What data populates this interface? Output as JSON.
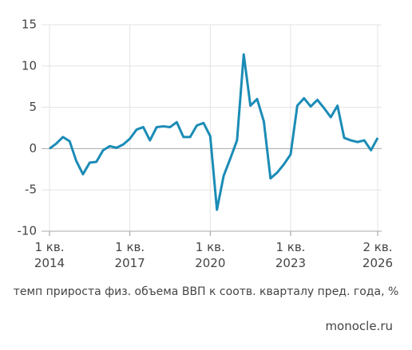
{
  "chart_data": {
    "type": "line",
    "categories": [
      "1 кв.\n2014",
      null,
      null,
      null,
      null,
      null,
      null,
      null,
      null,
      null,
      null,
      null,
      "1 кв.\n2017",
      null,
      null,
      null,
      null,
      null,
      null,
      null,
      null,
      null,
      null,
      null,
      "1 кв.\n2020",
      null,
      null,
      null,
      null,
      null,
      null,
      null,
      null,
      null,
      null,
      null,
      "1 кв.\n2023",
      null,
      null,
      null,
      null,
      null,
      null,
      null,
      null,
      null,
      null,
      null,
      null,
      "2 кв.\n2026"
    ],
    "values": [
      0,
      0.6,
      1.4,
      0.9,
      -1.5,
      -3.1,
      -1.7,
      -1.6,
      -0.2,
      0.3,
      0.1,
      0.5,
      1.2,
      2.3,
      2.6,
      1.0,
      2.6,
      2.7,
      2.6,
      3.2,
      1.4,
      1.4,
      2.8,
      3.1,
      1.5,
      -7.4,
      -3.3,
      -1.2,
      1.0,
      11.4,
      5.2,
      6.0,
      3.3,
      -3.6,
      -2.9,
      -1.9,
      -0.7,
      5.2,
      6.1,
      5.1,
      5.9,
      4.9,
      3.8,
      5.2,
      1.3,
      1.0,
      0.8,
      1.0,
      -0.2,
      1.3
    ],
    "color": "#1b8cb6",
    "ylim": [
      -10,
      15
    ],
    "yticks": [
      -10,
      -5,
      0,
      5,
      10,
      15
    ],
    "grid": true,
    "x_label": "темп прироста физ. объема ВВП к соотв. кварталу пред. года, %",
    "source": "monocle.ru"
  }
}
